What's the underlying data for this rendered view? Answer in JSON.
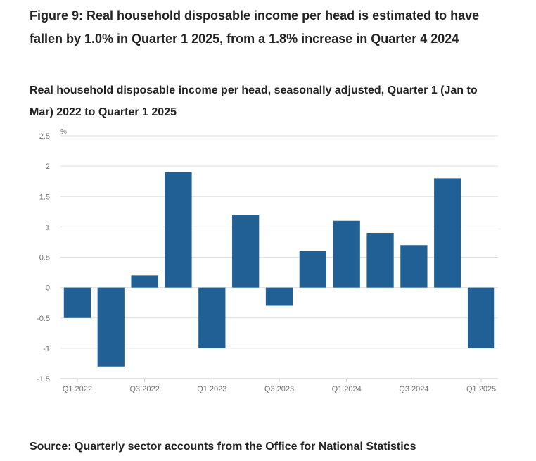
{
  "figure": {
    "title": "Figure 9: Real household disposable income per head is estimated to have fallen by 1.0% in Quarter 1 2025, from a 1.8% increase in Quarter 4 2024"
  },
  "source": "Source: Quarterly sector accounts from the Office for National Statistics",
  "chart_data": {
    "type": "bar",
    "title": "Real household disposable income per head, seasonally adjusted, Quarter 1 (Jan to Mar) 2022 to Quarter 1 2025",
    "xlabel": "",
    "ylabel": "%",
    "categories": [
      "Q1 2022",
      "Q2 2022",
      "Q3 2022",
      "Q4 2022",
      "Q1 2023",
      "Q2 2023",
      "Q3 2023",
      "Q4 2023",
      "Q1 2024",
      "Q2 2024",
      "Q3 2024",
      "Q4 2024",
      "Q1 2025"
    ],
    "values": [
      -0.5,
      -1.3,
      0.2,
      1.9,
      -1.0,
      1.2,
      -0.3,
      0.6,
      1.1,
      0.9,
      0.7,
      1.8,
      -1.0
    ],
    "x_tick_labels": [
      "Q1 2022",
      "Q3 2022",
      "Q1 2023",
      "Q3 2023",
      "Q1 2024",
      "Q3 2024",
      "Q1 2025"
    ],
    "y_ticks": [
      "2.5",
      "2",
      "1.5",
      "1",
      "0.5",
      "0",
      "-0.5",
      "-1",
      "-1.5"
    ],
    "ylim": [
      -1.5,
      2.5
    ],
    "grid": true,
    "legend": "none",
    "bar_color": "#206095",
    "grid_color": "#e0e0e0"
  }
}
